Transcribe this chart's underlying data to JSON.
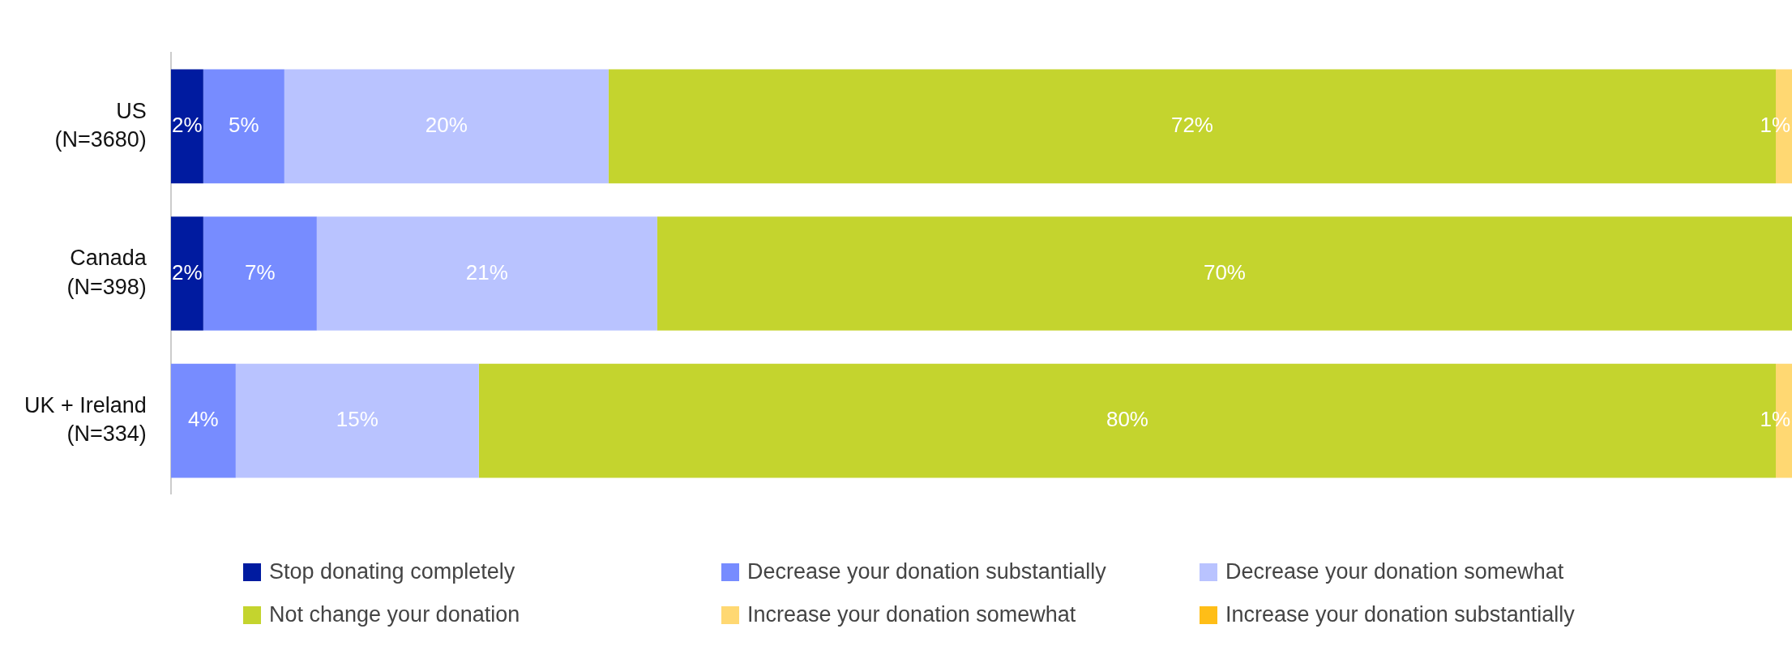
{
  "chart_data": {
    "type": "bar",
    "orientation": "horizontal",
    "stacked": true,
    "categories": [
      "US (N=3680)",
      "Canada (N=398)",
      "UK + Ireland (N=334)"
    ],
    "tick_labels": "y",
    "legend": "bottom",
    "series": [
      {
        "name": "Stop donating completely",
        "color": "#001ba0",
        "values": [
          2,
          2,
          null
        ],
        "value_labels": [
          "2%",
          "2%",
          null
        ]
      },
      {
        "name": "Decrease your donation substantially",
        "color": "#778cff",
        "values": [
          5,
          7,
          4
        ],
        "value_labels": [
          "5%",
          "7%",
          "4%"
        ]
      },
      {
        "name": "Decrease your donation somewhat",
        "color": "#b9c3ff",
        "values": [
          20,
          21,
          15
        ],
        "value_labels": [
          "20%",
          "21%",
          "15%"
        ]
      },
      {
        "name": "Not change your donation",
        "color": "#c4d42e",
        "values": [
          72,
          70,
          80
        ],
        "value_labels": [
          "72%",
          "70%",
          "80%"
        ]
      },
      {
        "name": "Increase your donation somewhat",
        "color": "#ffd872",
        "values": [
          1,
          null,
          1
        ],
        "value_labels": [
          "1%",
          null,
          "1%"
        ]
      },
      {
        "name": "Increase your donation substantially",
        "color": "#ffbe17",
        "values": [
          null,
          null,
          null
        ]
      }
    ]
  }
}
